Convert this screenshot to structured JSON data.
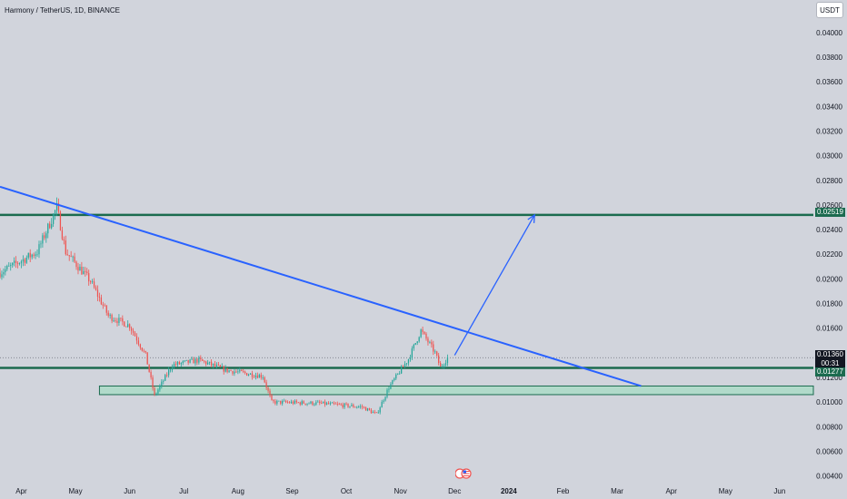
{
  "header": {
    "title": "Harmony / TetherUS, 1D, BINANCE",
    "currency": "USDT"
  },
  "colors": {
    "background": "#d1d4dc",
    "up_candle": "#26a69a",
    "down_candle": "#ef5350",
    "trendline": "#2962ff",
    "level_line": "#1b6b4f",
    "zone_fill": "#a6dcc4",
    "zone_border": "#1b6b4f"
  },
  "price_tags": {
    "target": "0.02519",
    "current_price": "0.01360",
    "countdown": "00:31",
    "support": "0.01277"
  },
  "chart_data": {
    "type": "candlestick",
    "title": "Harmony / TetherUS, 1D, BINANCE",
    "y_axis": {
      "ticks": [
        "0.04000",
        "0.03800",
        "0.03600",
        "0.03400",
        "0.03200",
        "0.03000",
        "0.02800",
        "0.02600",
        "0.02400",
        "0.02200",
        "0.02000",
        "0.01800",
        "0.01600",
        "0.01400",
        "0.01200",
        "0.01000",
        "0.00800",
        "0.00600",
        "0.00400"
      ],
      "range": [
        0.0036,
        0.0408
      ],
      "scale": "linear",
      "position": "right"
    },
    "x_axis": {
      "ticks": [
        "Apr",
        "May",
        "Jun",
        "Jul",
        "Aug",
        "Sep",
        "Oct",
        "Nov",
        "Dec",
        "2024",
        "Feb",
        "Mar",
        "Apr",
        "May",
        "Jun"
      ],
      "range": [
        "2023-03-20",
        "2024-06-20"
      ]
    },
    "grid": false,
    "price_path": [
      {
        "date": "2023-03-20",
        "close": 0.0205
      },
      {
        "date": "2023-04-10",
        "close": 0.0222
      },
      {
        "date": "2023-04-21",
        "close": 0.0258
      },
      {
        "date": "2023-04-26",
        "close": 0.0222
      },
      {
        "date": "2023-05-10",
        "close": 0.0198
      },
      {
        "date": "2023-05-20",
        "close": 0.017
      },
      {
        "date": "2023-06-01",
        "close": 0.0162
      },
      {
        "date": "2023-06-10",
        "close": 0.0138
      },
      {
        "date": "2023-06-15",
        "close": 0.0105
      },
      {
        "date": "2023-06-25",
        "close": 0.013
      },
      {
        "date": "2023-07-10",
        "close": 0.0134
      },
      {
        "date": "2023-07-25",
        "close": 0.0126
      },
      {
        "date": "2023-08-15",
        "close": 0.0121
      },
      {
        "date": "2023-08-20",
        "close": 0.01
      },
      {
        "date": "2023-09-15",
        "close": 0.0099
      },
      {
        "date": "2023-10-10",
        "close": 0.0096
      },
      {
        "date": "2023-10-18",
        "close": 0.009
      },
      {
        "date": "2023-10-25",
        "close": 0.0112
      },
      {
        "date": "2023-11-05",
        "close": 0.0135
      },
      {
        "date": "2023-11-12",
        "close": 0.0158
      },
      {
        "date": "2023-11-20",
        "close": 0.014
      },
      {
        "date": "2023-11-23",
        "close": 0.0128
      },
      {
        "date": "2023-11-27",
        "close": 0.0136
      }
    ],
    "annotations": {
      "horizontal_lines": [
        {
          "price": 0.02519,
          "date_from": "2023-03-20",
          "date_to": "2024-06-20"
        },
        {
          "price": 0.01277,
          "date_from": "2023-03-20",
          "date_to": "2024-06-20"
        }
      ],
      "zone": {
        "price_top": 0.0113,
        "price_bottom": 0.0106,
        "date_from": "2023-05-15",
        "date_to": "2024-06-20"
      },
      "trendline": {
        "start": {
          "date": "2023-03-20",
          "price": 0.02748
        },
        "end": {
          "date": "2024-03-15",
          "price": 0.0113
        }
      },
      "projection_arrow": {
        "start": {
          "date": "2023-12-01",
          "price": 0.0138
        },
        "end": {
          "date": "2024-01-15",
          "price": 0.02519
        }
      },
      "current_price_line": {
        "price": 0.0136
      }
    }
  }
}
